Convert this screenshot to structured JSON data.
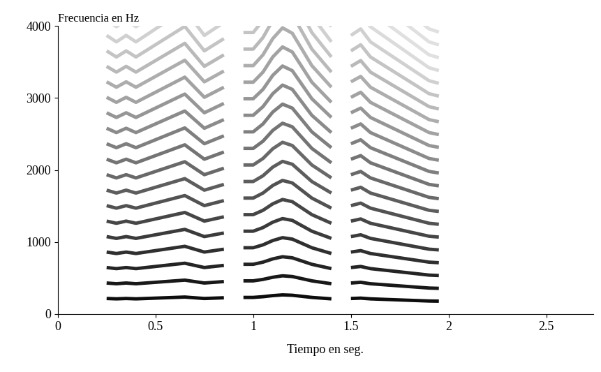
{
  "chart_data": {
    "type": "spectrogram",
    "y_label": "Frecuencia en Hz",
    "x_label": "Tiempo en seg.",
    "x": [
      0.25,
      0.3,
      0.35,
      0.4,
      0.45,
      0.5,
      0.55,
      0.6,
      0.65,
      0.7,
      0.75,
      0.8,
      0.85,
      0.9,
      0.95,
      1.0,
      1.05,
      1.1,
      1.15,
      1.2,
      1.25,
      1.3,
      1.35,
      1.4,
      1.45,
      1.5,
      1.55,
      1.6,
      1.65,
      1.7,
      1.75,
      1.8,
      1.85,
      1.9,
      1.95
    ],
    "values": [
      215,
      210,
      215,
      210,
      215,
      220,
      225,
      230,
      235,
      225,
      215,
      220,
      225,
      null,
      230,
      230,
      240,
      255,
      265,
      260,
      245,
      230,
      220,
      210,
      null,
      215,
      220,
      210,
      205,
      200,
      195,
      190,
      185,
      180,
      178
    ],
    "color": "#000000",
    "xlim": [
      0,
      2.74
    ],
    "xticks": [
      0,
      0.5,
      1,
      1.5,
      2,
      2.5
    ],
    "ylim": [
      0,
      4000
    ],
    "yticks": [
      0,
      1000,
      2000,
      3000,
      4000
    ],
    "grid": false
  }
}
